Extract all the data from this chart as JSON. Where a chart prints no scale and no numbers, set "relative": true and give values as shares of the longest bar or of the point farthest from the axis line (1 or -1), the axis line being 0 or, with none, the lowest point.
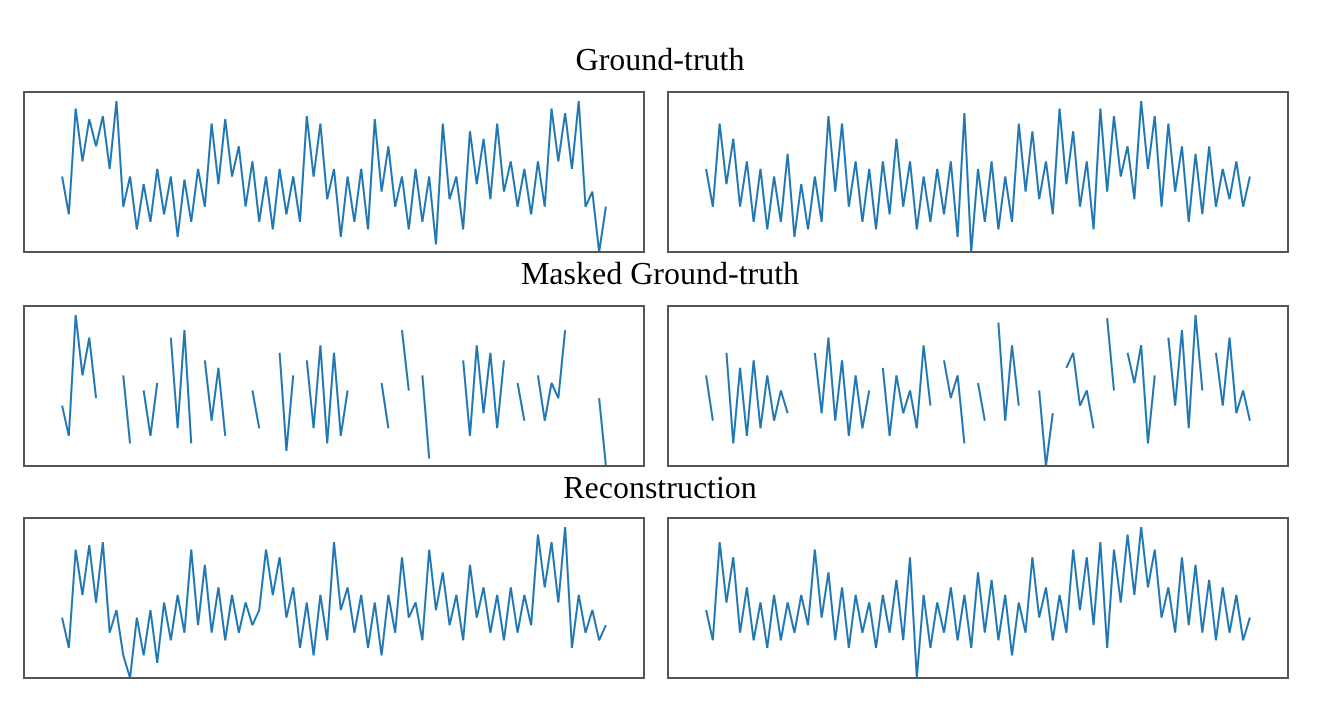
{
  "chart_data": [
    {
      "type": "line",
      "title": "Ground-truth",
      "relative": true,
      "color": "#1f77b4",
      "categories": [
        null,
        null,
        null,
        null,
        null,
        null,
        null,
        null,
        null,
        null,
        null,
        null,
        null,
        null,
        null,
        null,
        null,
        null,
        null,
        null,
        null,
        null,
        null,
        null,
        null,
        null,
        null,
        null,
        null,
        null,
        null,
        null,
        null,
        null,
        null,
        null,
        null,
        null,
        null,
        null,
        null,
        null,
        null,
        null,
        null,
        null,
        null,
        null,
        null,
        null,
        null,
        null,
        null,
        null,
        null,
        null,
        null,
        null,
        null,
        null,
        null,
        null,
        null,
        null,
        null,
        null,
        null,
        null,
        null,
        null,
        null,
        null,
        null,
        null,
        null,
        null,
        null,
        null,
        null,
        null,
        null
      ],
      "values": [
        0.5,
        0.25,
        0.95,
        0.6,
        0.88,
        0.7,
        0.9,
        0.55,
        1.0,
        0.3,
        0.5,
        0.15,
        0.45,
        0.2,
        0.55,
        0.25,
        0.5,
        0.1,
        0.48,
        0.2,
        0.55,
        0.3,
        0.85,
        0.45,
        0.88,
        0.5,
        0.7,
        0.3,
        0.6,
        0.2,
        0.5,
        0.15,
        0.55,
        0.25,
        0.5,
        0.2,
        0.9,
        0.5,
        0.85,
        0.35,
        0.55,
        0.1,
        0.5,
        0.2,
        0.55,
        0.15,
        0.88,
        0.4,
        0.7,
        0.3,
        0.5,
        0.15,
        0.55,
        0.2,
        0.5,
        0.05,
        0.85,
        0.35,
        0.5,
        0.15,
        0.8,
        0.45,
        0.75,
        0.35,
        0.85,
        0.4,
        0.6,
        0.3,
        0.55,
        0.25,
        0.6,
        0.3,
        0.95,
        0.6,
        0.92,
        0.55,
        1.0,
        0.3,
        0.4,
        0.0,
        0.3
      ]
    },
    {
      "type": "line",
      "relative": true,
      "color": "#1f77b4",
      "categories": [
        null,
        null,
        null,
        null,
        null,
        null,
        null,
        null,
        null,
        null,
        null,
        null,
        null,
        null,
        null,
        null,
        null,
        null,
        null,
        null,
        null,
        null,
        null,
        null,
        null,
        null,
        null,
        null,
        null,
        null,
        null,
        null,
        null,
        null,
        null,
        null,
        null,
        null,
        null,
        null,
        null,
        null,
        null,
        null,
        null,
        null,
        null,
        null,
        null,
        null,
        null,
        null,
        null,
        null,
        null,
        null,
        null,
        null,
        null,
        null,
        null,
        null,
        null,
        null,
        null,
        null,
        null,
        null,
        null,
        null,
        null,
        null,
        null,
        null,
        null,
        null,
        null,
        null,
        null,
        null,
        null
      ],
      "values": [
        0.55,
        0.3,
        0.85,
        0.45,
        0.75,
        0.3,
        0.6,
        0.2,
        0.55,
        0.15,
        0.5,
        0.2,
        0.65,
        0.1,
        0.45,
        0.15,
        0.5,
        0.2,
        0.9,
        0.4,
        0.85,
        0.3,
        0.6,
        0.2,
        0.55,
        0.15,
        0.6,
        0.25,
        0.75,
        0.3,
        0.6,
        0.15,
        0.5,
        0.2,
        0.55,
        0.25,
        0.6,
        0.1,
        0.92,
        0.0,
        0.55,
        0.2,
        0.6,
        0.15,
        0.5,
        0.2,
        0.85,
        0.4,
        0.8,
        0.35,
        0.6,
        0.25,
        0.95,
        0.45,
        0.8,
        0.3,
        0.6,
        0.15,
        0.95,
        0.4,
        0.9,
        0.5,
        0.7,
        0.35,
        1.0,
        0.55,
        0.9,
        0.3,
        0.85,
        0.4,
        0.7,
        0.2,
        0.65,
        0.25,
        0.7,
        0.3,
        0.55,
        0.35,
        0.6,
        0.3,
        0.5
      ]
    },
    {
      "type": "line",
      "title": "Masked Ground-truth",
      "relative": true,
      "color": "#1f77b4",
      "categories": [
        null,
        null,
        null,
        null,
        null,
        null,
        null,
        null,
        null,
        null,
        null,
        null,
        null,
        null,
        null,
        null,
        null,
        null,
        null,
        null,
        null,
        null,
        null,
        null,
        null,
        null,
        null,
        null,
        null,
        null,
        null,
        null,
        null,
        null,
        null,
        null,
        null,
        null,
        null,
        null,
        null,
        null,
        null,
        null,
        null,
        null,
        null,
        null,
        null,
        null,
        null,
        null,
        null,
        null,
        null,
        null,
        null,
        null,
        null,
        null,
        null,
        null,
        null,
        null,
        null,
        null,
        null,
        null,
        null,
        null,
        null,
        null,
        null,
        null,
        null,
        null,
        null,
        null,
        null,
        null,
        null
      ],
      "values": [
        0.4,
        0.2,
        1.0,
        0.6,
        0.85,
        0.45,
        null,
        null,
        null,
        0.6,
        0.15,
        null,
        0.5,
        0.2,
        0.55,
        null,
        0.85,
        0.25,
        0.9,
        0.15,
        null,
        0.7,
        0.3,
        0.65,
        0.2,
        null,
        null,
        null,
        0.5,
        0.25,
        null,
        null,
        0.75,
        0.1,
        0.6,
        null,
        0.7,
        0.25,
        0.8,
        0.15,
        0.75,
        0.2,
        0.5,
        null,
        null,
        null,
        null,
        0.55,
        0.25,
        null,
        0.9,
        0.5,
        null,
        0.6,
        0.05,
        null,
        null,
        null,
        null,
        0.7,
        0.2,
        0.8,
        0.35,
        0.75,
        0.25,
        0.7,
        null,
        0.55,
        0.3,
        null,
        0.6,
        0.3,
        0.55,
        0.45,
        0.9,
        null,
        null,
        null,
        null,
        0.45,
        0.0
      ]
    },
    {
      "type": "line",
      "relative": true,
      "color": "#1f77b4",
      "categories": [
        null,
        null,
        null,
        null,
        null,
        null,
        null,
        null,
        null,
        null,
        null,
        null,
        null,
        null,
        null,
        null,
        null,
        null,
        null,
        null,
        null,
        null,
        null,
        null,
        null,
        null,
        null,
        null,
        null,
        null,
        null,
        null,
        null,
        null,
        null,
        null,
        null,
        null,
        null,
        null,
        null,
        null,
        null,
        null,
        null,
        null,
        null,
        null,
        null,
        null,
        null,
        null,
        null,
        null,
        null,
        null,
        null,
        null,
        null,
        null,
        null,
        null,
        null,
        null,
        null,
        null,
        null,
        null,
        null,
        null,
        null,
        null,
        null,
        null,
        null,
        null,
        null,
        null,
        null,
        null,
        null
      ],
      "values": [
        0.6,
        0.3,
        null,
        0.75,
        0.15,
        0.65,
        0.2,
        0.7,
        0.25,
        0.6,
        0.3,
        0.5,
        0.35,
        null,
        null,
        null,
        0.75,
        0.35,
        0.85,
        0.3,
        0.7,
        0.2,
        0.6,
        0.25,
        0.5,
        null,
        0.65,
        0.2,
        0.6,
        0.35,
        0.5,
        0.25,
        0.8,
        0.4,
        null,
        0.7,
        0.45,
        0.6,
        0.15,
        null,
        0.55,
        0.3,
        null,
        0.95,
        0.3,
        0.8,
        0.4,
        null,
        null,
        0.5,
        0.0,
        0.35,
        null,
        0.65,
        0.75,
        0.4,
        0.5,
        0.25,
        null,
        0.98,
        0.5,
        null,
        0.75,
        0.55,
        0.8,
        0.15,
        0.6,
        null,
        0.85,
        0.4,
        0.9,
        0.25,
        1.0,
        0.5,
        null,
        0.75,
        0.4,
        0.85,
        0.35,
        0.5,
        0.3
      ]
    },
    {
      "type": "line",
      "title": "Reconstruction",
      "relative": true,
      "color": "#1f77b4",
      "categories": [
        null,
        null,
        null,
        null,
        null,
        null,
        null,
        null,
        null,
        null,
        null,
        null,
        null,
        null,
        null,
        null,
        null,
        null,
        null,
        null,
        null,
        null,
        null,
        null,
        null,
        null,
        null,
        null,
        null,
        null,
        null,
        null,
        null,
        null,
        null,
        null,
        null,
        null,
        null,
        null,
        null,
        null,
        null,
        null,
        null,
        null,
        null,
        null,
        null,
        null,
        null,
        null,
        null,
        null,
        null,
        null,
        null,
        null,
        null,
        null,
        null,
        null,
        null,
        null,
        null,
        null,
        null,
        null,
        null,
        null,
        null,
        null,
        null,
        null,
        null,
        null,
        null,
        null,
        null,
        null,
        null
      ],
      "values": [
        0.4,
        0.2,
        0.85,
        0.55,
        0.88,
        0.5,
        0.9,
        0.3,
        0.45,
        0.15,
        0.0,
        0.4,
        0.15,
        0.45,
        0.1,
        0.5,
        0.25,
        0.55,
        0.3,
        0.85,
        0.35,
        0.75,
        0.3,
        0.6,
        0.25,
        0.55,
        0.3,
        0.5,
        0.35,
        0.45,
        0.85,
        0.55,
        0.8,
        0.4,
        0.6,
        0.2,
        0.5,
        0.15,
        0.55,
        0.25,
        0.9,
        0.45,
        0.6,
        0.3,
        0.55,
        0.2,
        0.5,
        0.15,
        0.55,
        0.3,
        0.8,
        0.4,
        0.5,
        0.25,
        0.85,
        0.45,
        0.7,
        0.35,
        0.55,
        0.25,
        0.75,
        0.4,
        0.6,
        0.3,
        0.55,
        0.25,
        0.6,
        0.3,
        0.55,
        0.35,
        0.95,
        0.6,
        0.9,
        0.5,
        1.0,
        0.2,
        0.55,
        0.3,
        0.45,
        0.25,
        0.35
      ]
    },
    {
      "type": "line",
      "relative": true,
      "color": "#1f77b4",
      "categories": [
        null,
        null,
        null,
        null,
        null,
        null,
        null,
        null,
        null,
        null,
        null,
        null,
        null,
        null,
        null,
        null,
        null,
        null,
        null,
        null,
        null,
        null,
        null,
        null,
        null,
        null,
        null,
        null,
        null,
        null,
        null,
        null,
        null,
        null,
        null,
        null,
        null,
        null,
        null,
        null,
        null,
        null,
        null,
        null,
        null,
        null,
        null,
        null,
        null,
        null,
        null,
        null,
        null,
        null,
        null,
        null,
        null,
        null,
        null,
        null,
        null,
        null,
        null,
        null,
        null,
        null,
        null,
        null,
        null,
        null,
        null,
        null,
        null,
        null,
        null,
        null,
        null,
        null,
        null,
        null,
        null
      ],
      "values": [
        0.45,
        0.25,
        0.9,
        0.5,
        0.8,
        0.3,
        0.6,
        0.25,
        0.5,
        0.2,
        0.55,
        0.25,
        0.5,
        0.3,
        0.55,
        0.35,
        0.85,
        0.4,
        0.7,
        0.25,
        0.6,
        0.2,
        0.55,
        0.3,
        0.5,
        0.2,
        0.55,
        0.3,
        0.65,
        0.25,
        0.8,
        0.0,
        0.55,
        0.2,
        0.5,
        0.3,
        0.6,
        0.25,
        0.55,
        0.2,
        0.7,
        0.3,
        0.65,
        0.25,
        0.55,
        0.15,
        0.5,
        0.3,
        0.8,
        0.4,
        0.6,
        0.25,
        0.55,
        0.3,
        0.85,
        0.45,
        0.8,
        0.35,
        0.9,
        0.2,
        0.85,
        0.5,
        0.95,
        0.55,
        1.0,
        0.6,
        0.85,
        0.4,
        0.6,
        0.3,
        0.8,
        0.35,
        0.75,
        0.3,
        0.65,
        0.25,
        0.6,
        0.3,
        0.55,
        0.25,
        0.4
      ]
    }
  ]
}
